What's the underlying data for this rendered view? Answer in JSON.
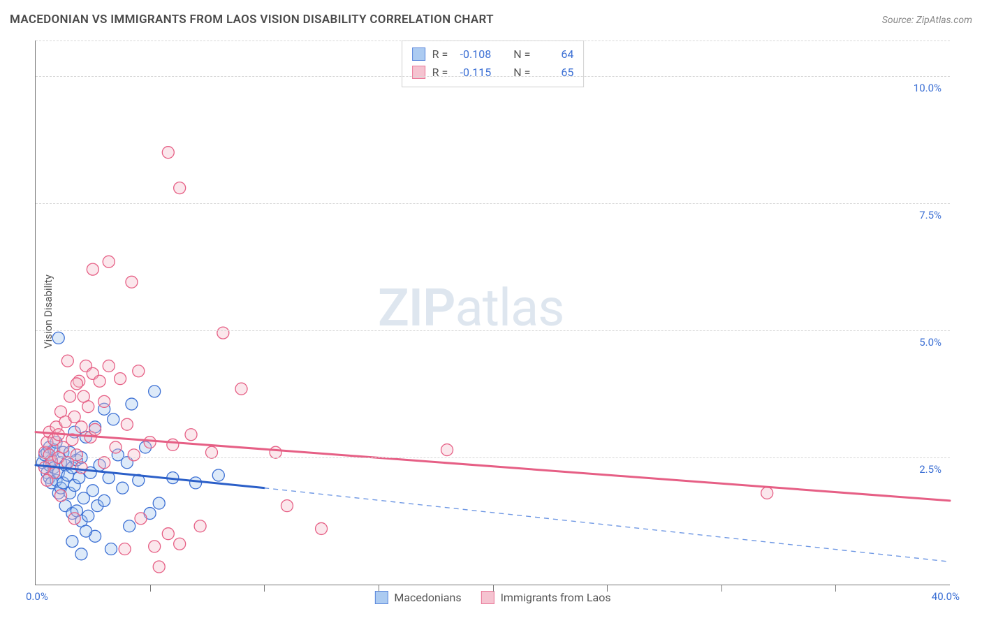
{
  "title": "MACEDONIAN VS IMMIGRANTS FROM LAOS VISION DISABILITY CORRELATION CHART",
  "source": "Source: ZipAtlas.com",
  "y_axis_label": "Vision Disability",
  "watermark_a": "ZIP",
  "watermark_b": "atlas",
  "chart": {
    "type": "scatter",
    "background_color": "#ffffff",
    "grid_color": "#d7d7d7",
    "axis_color": "#777777",
    "tick_label_color": "#3b6fd4",
    "xlim": [
      0,
      40
    ],
    "ylim": [
      0,
      10.7
    ],
    "x_ticks_minor": [
      5,
      10,
      15,
      20,
      25,
      30,
      35
    ],
    "y_gridlines": [
      2.5,
      5.0,
      7.5,
      10.0
    ],
    "y_tick_labels": [
      "2.5%",
      "5.0%",
      "7.5%",
      "10.0%"
    ],
    "x_tick_label_left": "0.0%",
    "x_tick_label_right": "40.0%",
    "marker_radius": 8.5,
    "marker_stroke_width": 1.3,
    "marker_fill_opacity": 0.35,
    "series": [
      {
        "name": "Macedonians",
        "fill": "#9ec3ef",
        "stroke": "#3b6fd4",
        "r_label": "R =",
        "r_value": "-0.108",
        "n_label": "N =",
        "n_value": "64",
        "trend": {
          "solid": {
            "x1": 0,
            "y1": 2.35,
            "x2": 10,
            "y2": 1.9,
            "color": "#2b5fc8",
            "width": 3
          },
          "dashed": {
            "x1": 10,
            "y1": 1.9,
            "x2": 40,
            "y2": 0.45,
            "color": "#6f98e4",
            "width": 1.4,
            "dash": "7,6"
          }
        },
        "points": [
          [
            0.3,
            2.4
          ],
          [
            0.4,
            2.55
          ],
          [
            0.5,
            2.2
          ],
          [
            0.5,
            2.6
          ],
          [
            0.6,
            2.35
          ],
          [
            0.6,
            2.1
          ],
          [
            0.6,
            2.7
          ],
          [
            0.7,
            2.0
          ],
          [
            0.7,
            2.45
          ],
          [
            0.8,
            2.3
          ],
          [
            0.8,
            2.65
          ],
          [
            0.9,
            2.05
          ],
          [
            0.9,
            2.8
          ],
          [
            1.0,
            2.2
          ],
          [
            1.0,
            1.8
          ],
          [
            1.1,
            2.4
          ],
          [
            1.1,
            1.9
          ],
          [
            1.2,
            2.6
          ],
          [
            1.2,
            2.0
          ],
          [
            1.3,
            2.35
          ],
          [
            1.3,
            1.55
          ],
          [
            1.4,
            2.15
          ],
          [
            1.5,
            1.8
          ],
          [
            1.5,
            2.6
          ],
          [
            1.6,
            1.4
          ],
          [
            1.6,
            2.3
          ],
          [
            1.7,
            3.0
          ],
          [
            1.7,
            1.95
          ],
          [
            1.8,
            1.45
          ],
          [
            1.8,
            2.45
          ],
          [
            1.9,
            2.1
          ],
          [
            2.0,
            1.25
          ],
          [
            2.0,
            2.5
          ],
          [
            2.1,
            1.7
          ],
          [
            2.2,
            2.9
          ],
          [
            2.3,
            1.35
          ],
          [
            2.4,
            2.2
          ],
          [
            2.5,
            1.85
          ],
          [
            2.6,
            3.1
          ],
          [
            2.7,
            1.55
          ],
          [
            2.8,
            2.35
          ],
          [
            3.0,
            1.65
          ],
          [
            3.0,
            3.45
          ],
          [
            3.2,
            2.1
          ],
          [
            3.4,
            3.25
          ],
          [
            3.6,
            2.55
          ],
          [
            3.8,
            1.9
          ],
          [
            4.0,
            2.4
          ],
          [
            4.2,
            3.55
          ],
          [
            4.5,
            2.05
          ],
          [
            4.8,
            2.7
          ],
          [
            5.0,
            1.4
          ],
          [
            5.2,
            3.8
          ],
          [
            1.0,
            4.85
          ],
          [
            1.6,
            0.85
          ],
          [
            2.0,
            0.6
          ],
          [
            2.6,
            0.95
          ],
          [
            3.3,
            0.7
          ],
          [
            4.1,
            1.15
          ],
          [
            5.4,
            1.6
          ],
          [
            6.0,
            2.1
          ],
          [
            7.0,
            2.0
          ],
          [
            8.0,
            2.15
          ],
          [
            2.2,
            1.05
          ]
        ]
      },
      {
        "name": "Immigrants from Laos",
        "fill": "#f4b9c8",
        "stroke": "#e65f85",
        "r_label": "R =",
        "r_value": "-0.115",
        "n_label": "N =",
        "n_value": "65",
        "trend": {
          "solid": {
            "x1": 0,
            "y1": 3.0,
            "x2": 40,
            "y2": 1.65,
            "color": "#e65f85",
            "width": 3
          }
        },
        "points": [
          [
            0.4,
            2.6
          ],
          [
            0.5,
            2.8
          ],
          [
            0.6,
            2.55
          ],
          [
            0.6,
            3.0
          ],
          [
            0.7,
            2.4
          ],
          [
            0.8,
            2.85
          ],
          [
            0.8,
            2.2
          ],
          [
            0.9,
            3.1
          ],
          [
            1.0,
            2.5
          ],
          [
            1.0,
            2.95
          ],
          [
            1.1,
            3.4
          ],
          [
            1.2,
            2.7
          ],
          [
            1.3,
            3.2
          ],
          [
            1.4,
            2.4
          ],
          [
            1.5,
            3.7
          ],
          [
            1.6,
            2.85
          ],
          [
            1.7,
            3.3
          ],
          [
            1.8,
            2.55
          ],
          [
            1.9,
            4.0
          ],
          [
            2.0,
            3.1
          ],
          [
            2.0,
            2.3
          ],
          [
            2.2,
            4.3
          ],
          [
            2.3,
            3.5
          ],
          [
            2.4,
            2.9
          ],
          [
            2.5,
            4.15
          ],
          [
            2.6,
            3.05
          ],
          [
            2.8,
            4.0
          ],
          [
            3.0,
            3.6
          ],
          [
            3.0,
            2.4
          ],
          [
            3.2,
            4.3
          ],
          [
            3.5,
            2.7
          ],
          [
            3.7,
            4.05
          ],
          [
            4.0,
            3.15
          ],
          [
            4.3,
            2.55
          ],
          [
            4.5,
            4.2
          ],
          [
            5.0,
            2.8
          ],
          [
            5.4,
            0.35
          ],
          [
            5.8,
            1.0
          ],
          [
            6.0,
            2.75
          ],
          [
            6.3,
            0.8
          ],
          [
            6.8,
            2.95
          ],
          [
            7.2,
            1.15
          ],
          [
            7.7,
            2.6
          ],
          [
            8.2,
            4.95
          ],
          [
            9.0,
            3.85
          ],
          [
            10.5,
            2.6
          ],
          [
            11.0,
            1.55
          ],
          [
            12.5,
            1.1
          ],
          [
            18.0,
            2.65
          ],
          [
            32.0,
            1.8
          ],
          [
            2.5,
            6.2
          ],
          [
            3.2,
            6.35
          ],
          [
            4.2,
            5.95
          ],
          [
            5.8,
            8.5
          ],
          [
            6.3,
            7.8
          ],
          [
            3.9,
            0.7
          ],
          [
            4.6,
            1.3
          ],
          [
            5.2,
            0.75
          ],
          [
            1.4,
            4.4
          ],
          [
            1.8,
            3.95
          ],
          [
            2.1,
            3.7
          ],
          [
            0.4,
            2.3
          ],
          [
            0.5,
            2.05
          ],
          [
            1.1,
            1.75
          ],
          [
            1.7,
            1.3
          ]
        ]
      }
    ]
  }
}
